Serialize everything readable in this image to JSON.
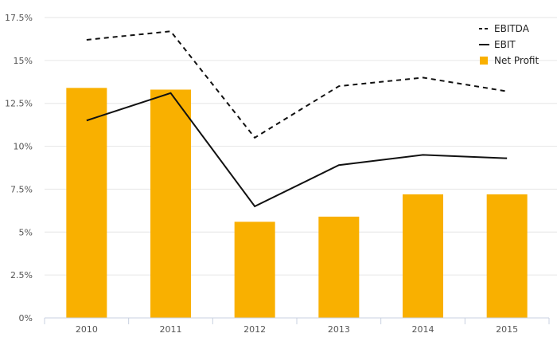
{
  "chart_data": {
    "type": "bar",
    "title": "",
    "xlabel": "",
    "ylabel": "",
    "categories": [
      "2010",
      "2011",
      "2012",
      "2013",
      "2014",
      "2015"
    ],
    "ylim": [
      0,
      17.5
    ],
    "yticks": [
      0,
      2.5,
      5,
      7.5,
      10,
      12.5,
      15,
      17.5
    ],
    "ytick_labels": [
      "0%",
      "2.5%",
      "5%",
      "7.5%",
      "10%",
      "12.5%",
      "15%",
      "17.5%"
    ],
    "grid": "horizontal",
    "legend_position": "top-right",
    "series": [
      {
        "name": "EBITDA",
        "type": "line",
        "style": "dashed",
        "color": "#111111",
        "values": [
          16.2,
          16.7,
          10.5,
          13.5,
          14.0,
          13.2
        ]
      },
      {
        "name": "EBIT",
        "type": "line",
        "style": "solid",
        "color": "#111111",
        "values": [
          11.5,
          13.1,
          6.5,
          8.9,
          9.5,
          9.3
        ]
      },
      {
        "name": "Net Profit",
        "type": "bar",
        "color": "#f9b000",
        "values": [
          13.4,
          13.3,
          5.6,
          5.9,
          7.2,
          7.2
        ]
      }
    ]
  }
}
